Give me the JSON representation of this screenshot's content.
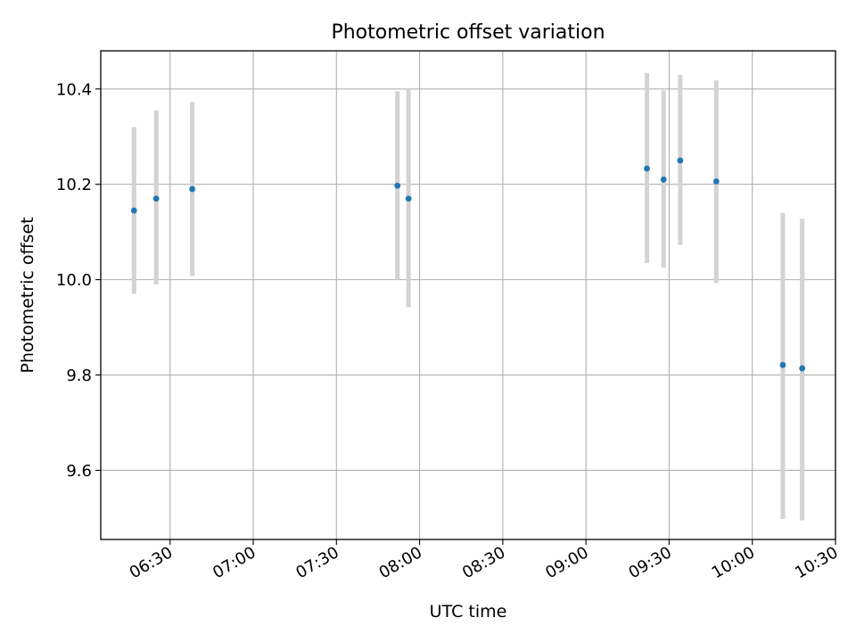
{
  "chart_data": {
    "type": "scatter",
    "title": "Photometric offset variation",
    "xlabel": "UTC time",
    "ylabel": "Photometric offset",
    "xlim": [
      "06:05",
      "10:30"
    ],
    "ylim": [
      9.455,
      10.48
    ],
    "x_ticks": [
      "06:30",
      "07:00",
      "07:30",
      "08:00",
      "08:30",
      "09:00",
      "09:30",
      "10:00",
      "10:30"
    ],
    "y_ticks": [
      9.6,
      9.8,
      10.0,
      10.2,
      10.4
    ],
    "y_tick_labels": [
      "9.6",
      "9.8",
      "10.0",
      "10.2",
      "10.4"
    ],
    "grid": true,
    "colors": {
      "marker": "#1f77b4",
      "errorbar": "#d3d3d3",
      "grid": "#b0b0b0"
    },
    "points": [
      {
        "x": "06:17",
        "y": 10.145,
        "err_low": 9.97,
        "err_high": 10.32
      },
      {
        "x": "06:25",
        "y": 10.17,
        "err_low": 9.99,
        "err_high": 10.355
      },
      {
        "x": "06:38",
        "y": 10.19,
        "err_low": 10.008,
        "err_high": 10.373
      },
      {
        "x": "07:52",
        "y": 10.197,
        "err_low": 10.0,
        "err_high": 10.395
      },
      {
        "x": "07:56",
        "y": 10.17,
        "err_low": 9.942,
        "err_high": 10.402
      },
      {
        "x": "09:22",
        "y": 10.233,
        "err_low": 10.035,
        "err_high": 10.433
      },
      {
        "x": "09:28",
        "y": 10.21,
        "err_low": 10.025,
        "err_high": 10.397
      },
      {
        "x": "09:34",
        "y": 10.25,
        "err_low": 10.073,
        "err_high": 10.43
      },
      {
        "x": "09:47",
        "y": 10.206,
        "err_low": 9.993,
        "err_high": 10.418
      },
      {
        "x": "10:11",
        "y": 9.821,
        "err_low": 9.498,
        "err_high": 10.14
      },
      {
        "x": "10:18",
        "y": 9.814,
        "err_low": 9.495,
        "err_high": 10.128
      }
    ]
  }
}
